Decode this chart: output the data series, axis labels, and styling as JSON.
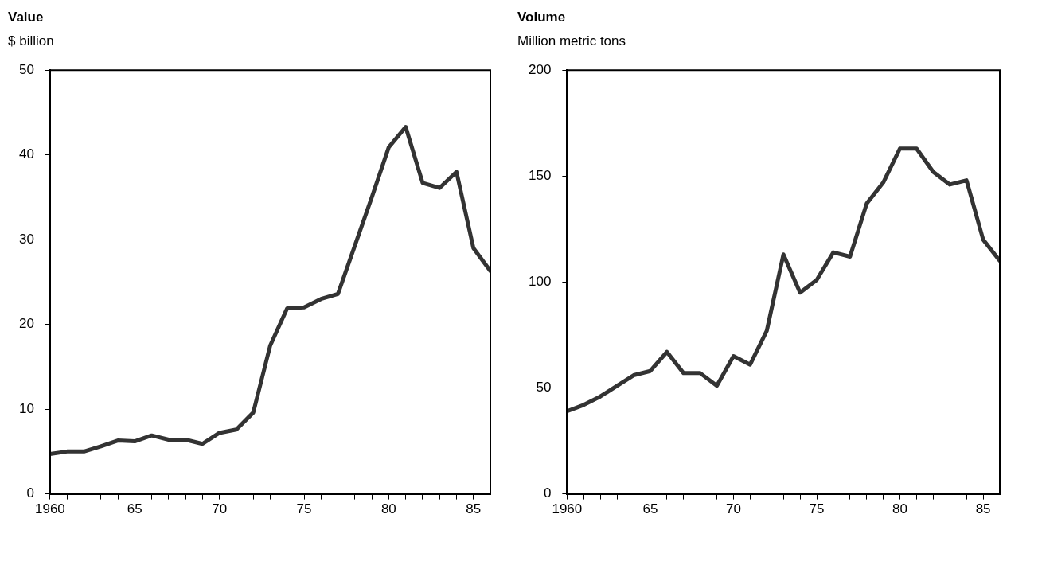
{
  "chart_data": [
    {
      "type": "line",
      "title": "Value",
      "ylabel": "$ billion",
      "grid": false,
      "legend": false,
      "marker": "none",
      "line_style": "solid",
      "x": [
        1960,
        1961,
        1962,
        1963,
        1964,
        1965,
        1966,
        1967,
        1968,
        1969,
        1970,
        1971,
        1972,
        1973,
        1974,
        1975,
        1976,
        1977,
        1978,
        1979,
        1980,
        1981,
        1982,
        1983,
        1984,
        1985,
        1986
      ],
      "series": [
        {
          "color": "#333333",
          "values": [
            4.7,
            5.0,
            5.0,
            5.6,
            6.3,
            6.2,
            6.9,
            6.4,
            6.4,
            5.9,
            7.2,
            7.6,
            9.6,
            17.5,
            21.9,
            22.0,
            23.0,
            23.6,
            29.3,
            35.0,
            40.9,
            43.3,
            36.7,
            36.1,
            38.0,
            29.0,
            26.3
          ]
        }
      ],
      "xlim": [
        1960,
        1986
      ],
      "ylim": [
        0,
        50
      ],
      "xticks": [
        {
          "value": 1960,
          "label": "1960"
        },
        {
          "value": 1961,
          "label": null
        },
        {
          "value": 1962,
          "label": null
        },
        {
          "value": 1963,
          "label": null
        },
        {
          "value": 1964,
          "label": null
        },
        {
          "value": 1965,
          "label": "65"
        },
        {
          "value": 1966,
          "label": null
        },
        {
          "value": 1967,
          "label": null
        },
        {
          "value": 1968,
          "label": null
        },
        {
          "value": 1969,
          "label": null
        },
        {
          "value": 1970,
          "label": "70"
        },
        {
          "value": 1971,
          "label": null
        },
        {
          "value": 1972,
          "label": null
        },
        {
          "value": 1973,
          "label": null
        },
        {
          "value": 1974,
          "label": null
        },
        {
          "value": 1975,
          "label": "75"
        },
        {
          "value": 1976,
          "label": null
        },
        {
          "value": 1977,
          "label": null
        },
        {
          "value": 1978,
          "label": null
        },
        {
          "value": 1979,
          "label": null
        },
        {
          "value": 1980,
          "label": "80"
        },
        {
          "value": 1981,
          "label": null
        },
        {
          "value": 1982,
          "label": null
        },
        {
          "value": 1983,
          "label": null
        },
        {
          "value": 1984,
          "label": null
        },
        {
          "value": 1985,
          "label": "85"
        }
      ],
      "yticks": [
        0,
        10,
        20,
        30,
        40,
        50
      ]
    },
    {
      "type": "line",
      "title": "Volume",
      "ylabel": "Million metric tons",
      "grid": false,
      "legend": false,
      "marker": "none",
      "line_style": "solid",
      "x": [
        1960,
        1961,
        1962,
        1963,
        1964,
        1965,
        1966,
        1967,
        1968,
        1969,
        1970,
        1971,
        1972,
        1973,
        1974,
        1975,
        1976,
        1977,
        1978,
        1979,
        1980,
        1981,
        1982,
        1983,
        1984,
        1985,
        1986
      ],
      "series": [
        {
          "color": "#333333",
          "values": [
            39,
            42,
            46,
            51,
            56,
            58,
            67,
            57,
            57,
            51,
            65,
            61,
            77,
            113,
            95,
            101,
            114,
            112,
            137,
            147,
            163,
            163,
            152,
            146,
            148,
            120,
            110
          ]
        }
      ],
      "xlim": [
        1960,
        1986
      ],
      "ylim": [
        0,
        200
      ],
      "xticks": [
        {
          "value": 1960,
          "label": "1960"
        },
        {
          "value": 1961,
          "label": null
        },
        {
          "value": 1962,
          "label": null
        },
        {
          "value": 1963,
          "label": null
        },
        {
          "value": 1964,
          "label": null
        },
        {
          "value": 1965,
          "label": "65"
        },
        {
          "value": 1966,
          "label": null
        },
        {
          "value": 1967,
          "label": null
        },
        {
          "value": 1968,
          "label": null
        },
        {
          "value": 1969,
          "label": null
        },
        {
          "value": 1970,
          "label": "70"
        },
        {
          "value": 1971,
          "label": null
        },
        {
          "value": 1972,
          "label": null
        },
        {
          "value": 1973,
          "label": null
        },
        {
          "value": 1974,
          "label": null
        },
        {
          "value": 1975,
          "label": "75"
        },
        {
          "value": 1976,
          "label": null
        },
        {
          "value": 1977,
          "label": null
        },
        {
          "value": 1978,
          "label": null
        },
        {
          "value": 1979,
          "label": null
        },
        {
          "value": 1980,
          "label": "80"
        },
        {
          "value": 1981,
          "label": null
        },
        {
          "value": 1982,
          "label": null
        },
        {
          "value": 1983,
          "label": null
        },
        {
          "value": 1984,
          "label": null
        },
        {
          "value": 1985,
          "label": "85"
        }
      ],
      "yticks": [
        0,
        50,
        100,
        150,
        200
      ]
    }
  ]
}
